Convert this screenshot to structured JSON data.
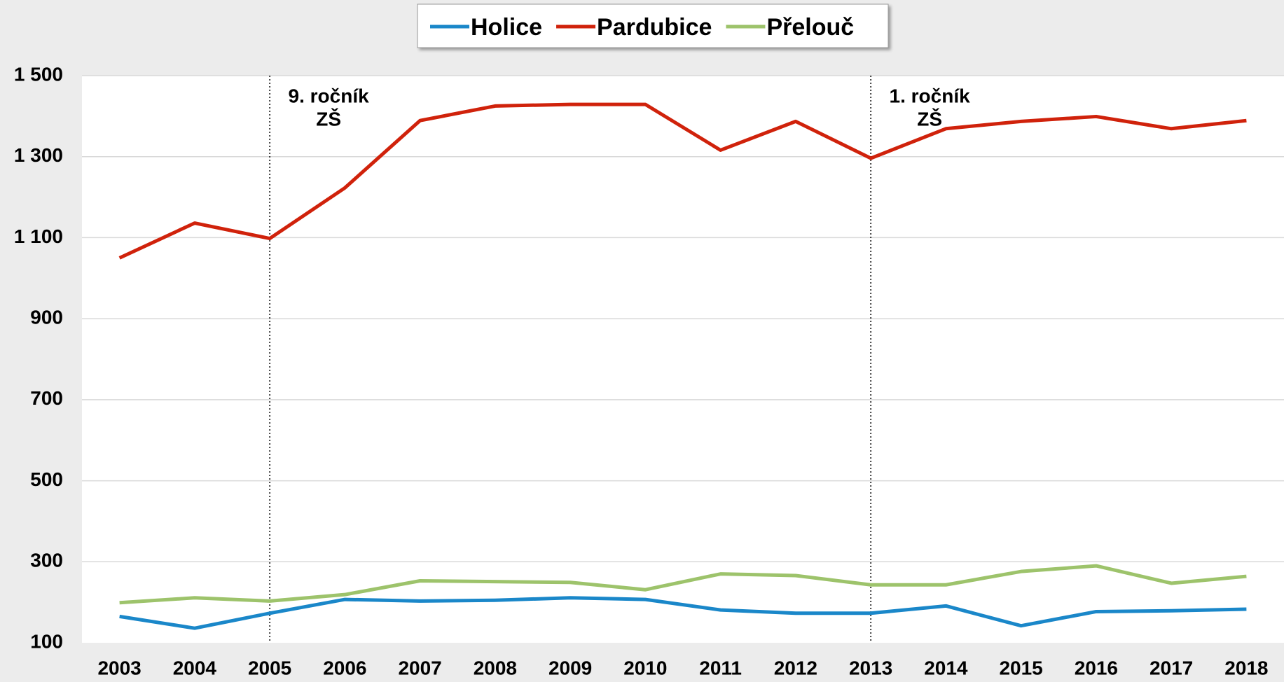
{
  "chart_data": {
    "type": "line",
    "x": [
      2003,
      2004,
      2005,
      2006,
      2007,
      2008,
      2009,
      2010,
      2011,
      2012,
      2013,
      2014,
      2015,
      2016,
      2017,
      2018
    ],
    "series": [
      {
        "name": "Holice",
        "color": "#1a87c9",
        "values": [
          165,
          136,
          173,
          207,
          203,
          205,
          211,
          207,
          181,
          173,
          173,
          191,
          142,
          177,
          179,
          183
        ]
      },
      {
        "name": "Pardubice",
        "color": "#d0220b",
        "values": [
          1050,
          1136,
          1098,
          1223,
          1389,
          1425,
          1429,
          1429,
          1316,
          1387,
          1296,
          1369,
          1387,
          1399,
          1369,
          1389
        ]
      },
      {
        "name": "Přelouč",
        "color": "#9dc36b",
        "values": [
          199,
          211,
          203,
          219,
          253,
          251,
          249,
          231,
          270,
          266,
          243,
          243,
          276,
          290,
          247,
          264
        ]
      }
    ],
    "ylim": [
      100,
      1500
    ],
    "yticks": [
      100,
      300,
      500,
      700,
      900,
      {
        "value": 1100,
        "label": "1 100"
      },
      {
        "value": 1300,
        "label": "1 300"
      },
      {
        "value": 1500,
        "label": "1 500"
      }
    ],
    "grid": true,
    "legend": "top",
    "annotations": [
      {
        "x": 2005,
        "lines": [
          "9. ročník",
          "ZŠ"
        ]
      },
      {
        "x": 2013,
        "lines": [
          "1. ročník",
          "ZŠ"
        ]
      }
    ]
  }
}
